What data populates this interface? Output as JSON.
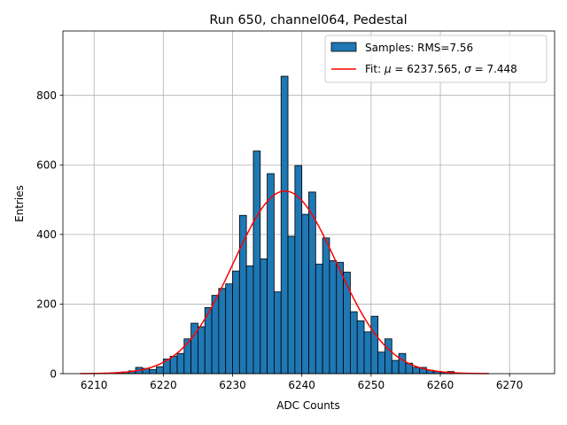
{
  "chart_data": {
    "type": "bar",
    "title": "Run 650, channel064, Pedestal",
    "xlabel": "ADC Counts",
    "ylabel": "Entries",
    "xlim": [
      6205.5,
      6276.5
    ],
    "ylim": [
      0,
      985
    ],
    "x_ticks": [
      6210,
      6220,
      6230,
      6240,
      6250,
      6260,
      6270
    ],
    "y_ticks": [
      0,
      200,
      400,
      600,
      800
    ],
    "grid": true,
    "legend_position": "top-right",
    "histogram": {
      "name": "Samples: RMS=7.56",
      "color": "#1f77b4",
      "bin_width": 1,
      "bin_starts": [
        6213,
        6214,
        6215,
        6216,
        6217,
        6218,
        6219,
        6220,
        6221,
        6222,
        6223,
        6224,
        6225,
        6226,
        6227,
        6228,
        6229,
        6230,
        6231,
        6232,
        6233,
        6234,
        6235,
        6236,
        6237,
        6238,
        6239,
        6240,
        6241,
        6242,
        6243,
        6244,
        6245,
        6246,
        6247,
        6248,
        6249,
        6250,
        6251,
        6252,
        6253,
        6254,
        6255,
        6256,
        6257,
        6258,
        6259,
        6260,
        6261
      ],
      "values": [
        3,
        5,
        8,
        18,
        15,
        12,
        20,
        42,
        50,
        58,
        100,
        145,
        135,
        190,
        225,
        245,
        258,
        295,
        455,
        310,
        640,
        330,
        575,
        235,
        855,
        395,
        598,
        458,
        522,
        315,
        390,
        325,
        320,
        292,
        178,
        152,
        120,
        165,
        62,
        100,
        38,
        58,
        30,
        18,
        18,
        10,
        6,
        4,
        6
      ]
    },
    "fit": {
      "name_prefix": "Fit: ",
      "mu_symbol": "μ",
      "sigma_symbol": "σ",
      "mu": 6237.565,
      "sigma": 7.448,
      "mu_text": " = 6237.565, ",
      "sigma_text": " = 7.448",
      "amplitude": 525,
      "x_range": [
        6208,
        6267
      ],
      "color": "#ff0000"
    }
  }
}
